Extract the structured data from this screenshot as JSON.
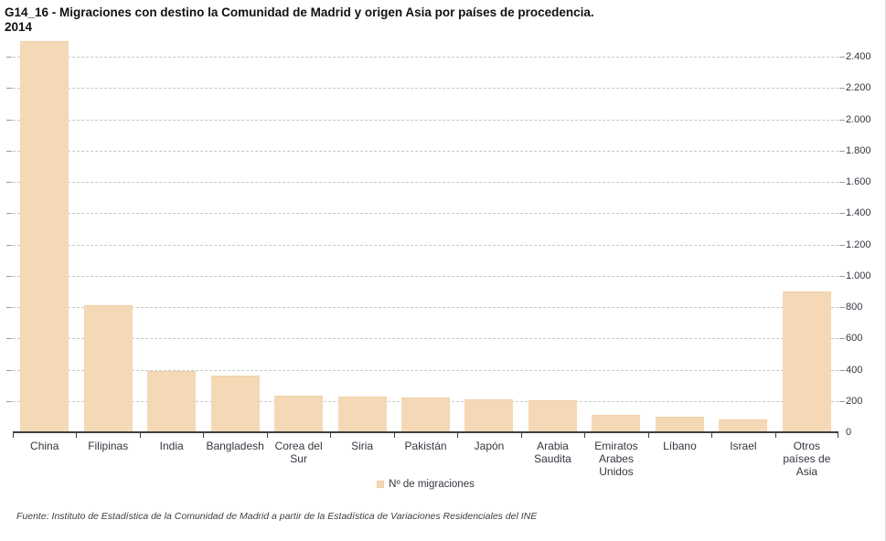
{
  "header": {
    "title_line1": "G14_16 - Migraciones con destino la Comunidad de Madrid y origen Asia por países de procedencia.",
    "title_line2": "2014"
  },
  "legend": {
    "label": "Nº de migraciones"
  },
  "footer": {
    "source": "Fuente: Instituto de Estadística de la Comunidad de Madrid a partir de la Estadística de Variaciones Residenciales del INE"
  },
  "colors": {
    "bar": "#F5D8B6",
    "bar_border": "#EFCFA6",
    "grid": "#C9C9C9",
    "axis": "#3F3F3F",
    "text": "#3B3340",
    "title": "#111111"
  },
  "chart_data": {
    "type": "bar",
    "title": "G14_16 - Migraciones con destino la Comunidad de Madrid y origen Asia por países de procedencia. 2014",
    "categories": [
      "China",
      "Filipinas",
      "India",
      "Bangladesh",
      "Corea del Sur",
      "Siria",
      "Pakistán",
      "Japón",
      "Arabia Saudita",
      "Emiratos Arabes Unidos",
      "Líbano",
      "Israel",
      "Otros países de Asia"
    ],
    "values": [
      2500,
      810,
      390,
      360,
      235,
      225,
      220,
      210,
      205,
      110,
      100,
      80,
      900
    ],
    "series_name": "Nº de migraciones",
    "xlabel": "",
    "ylabel": "",
    "ylim": [
      0,
      2500
    ],
    "ytick_step": 200,
    "ytick_max": 2400,
    "ytick_format": "es thousands dot (e.g. 2.400)",
    "grid": "horizontal dashed",
    "legend_position": "bottom center",
    "y_axis_side": "right"
  }
}
